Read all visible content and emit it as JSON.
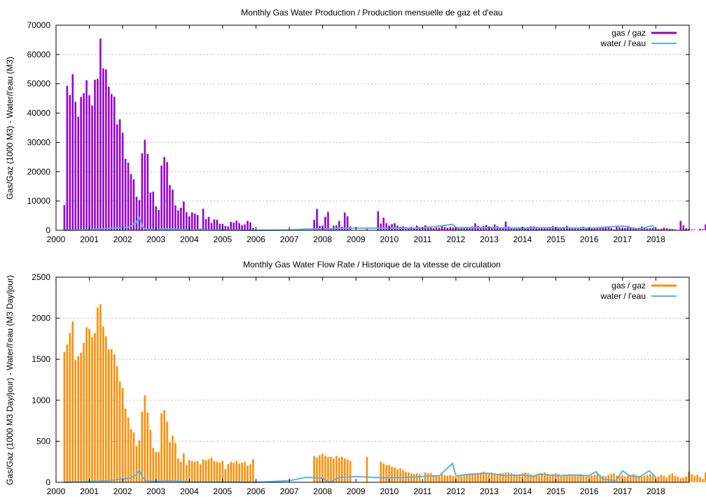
{
  "chart_data": [
    {
      "type": "bar",
      "title": "Monthly Gas  Water Production / Production mensuelle de gaz et d'eau",
      "xlabel": "",
      "ylabel": "Gas/Gaz (1000 M3) - Water/l'eau (M3)",
      "ylim": [
        0,
        70000
      ],
      "xlim": [
        2000,
        2019
      ],
      "legend_position": "top-right",
      "grid": true,
      "x_ticks": [
        "2000",
        "2001",
        "2002",
        "2003",
        "2004",
        "2005",
        "2006",
        "2007",
        "2008",
        "2009",
        "2010",
        "2011",
        "2012",
        "2013",
        "2014",
        "2015",
        "2016",
        "2017",
        "2018"
      ],
      "y_ticks": [
        "0",
        "10000",
        "20000",
        "30000",
        "40000",
        "50000",
        "60000",
        "70000"
      ],
      "colors": {
        "gas": "#9400d3",
        "water": "#56b4e9"
      },
      "series": [
        {
          "name": "gas / gaz",
          "style": "bars",
          "start": 2000.25,
          "step": 0.0833,
          "values": [
            8600,
            49300,
            46200,
            53300,
            43900,
            38800,
            45500,
            46800,
            51200,
            46100,
            42600,
            51400,
            51700,
            65400,
            55300,
            54900,
            49000,
            46500,
            45600,
            36200,
            37900,
            33300,
            24400,
            23100,
            19200,
            17400,
            11500,
            10300,
            26300,
            30900,
            26100,
            12900,
            13200,
            8200,
            7000,
            22100,
            25000,
            23300,
            15400,
            13900,
            8500,
            6800,
            7700,
            9800,
            6200,
            4800,
            6100,
            5700,
            5200,
            600,
            7400,
            3800,
            4600,
            2500,
            3700,
            3600,
            2200,
            2200,
            1500,
            1300,
            2900,
            2600,
            3300,
            2500,
            1700,
            2000,
            3200,
            2700,
            800,
            0,
            0,
            0,
            0,
            0,
            0,
            0,
            0,
            0,
            0,
            0,
            0,
            0,
            0,
            0,
            0,
            0,
            0,
            0,
            0,
            0,
            3600,
            7300,
            1500,
            1600,
            4600,
            6300,
            800,
            1600,
            1700,
            3200,
            1200,
            6100,
            4800,
            1300,
            0,
            0,
            0,
            0,
            0,
            400,
            0,
            0,
            0,
            6500,
            2300,
            4300,
            2400,
            1600,
            2100,
            2400,
            1600,
            1200,
            1300,
            1100,
            1000,
            1200,
            700,
            1600,
            1100,
            700,
            1700,
            1200,
            900,
            700,
            1000,
            900,
            1400,
            1100,
            900,
            1100,
            1000,
            800,
            1000,
            1000,
            900,
            1200,
            1100,
            1300,
            2400,
            1500,
            1100,
            1400,
            1800,
            1300,
            1200,
            2000,
            1400,
            900,
            1100,
            3000,
            1300,
            900,
            800,
            1000,
            1100,
            1200,
            900,
            1100,
            1300,
            1300,
            1200,
            1100,
            1000,
            900,
            900,
            1200,
            1400,
            1000,
            700,
            900,
            1100,
            1500,
            800,
            1000,
            800,
            900,
            1100,
            1200,
            1000,
            900,
            900,
            1000,
            900,
            700,
            1100,
            1200,
            1000,
            800,
            300,
            1500,
            1000,
            600,
            800,
            1500,
            1100,
            1000,
            800,
            900,
            1300,
            1000,
            600,
            700,
            800,
            500,
            400,
            500,
            900,
            700,
            500,
            400,
            300,
            0,
            3200,
            1700,
            700,
            500,
            300,
            200,
            0,
            500,
            400,
            2000,
            2100,
            400
          ]
        },
        {
          "name": "water / l'eau",
          "style": "line",
          "points": [
            [
              2000.25,
              0
            ],
            [
              2001.0,
              300
            ],
            [
              2001.5,
              600
            ],
            [
              2001.8,
              800
            ],
            [
              2002.0,
              900
            ],
            [
              2002.2,
              1200
            ],
            [
              2002.4,
              2500
            ],
            [
              2002.5,
              4400
            ],
            [
              2002.6,
              1200
            ],
            [
              2002.7,
              300
            ],
            [
              2003.0,
              300
            ],
            [
              2003.3,
              500
            ],
            [
              2003.6,
              400
            ],
            [
              2004.0,
              200
            ],
            [
              2005.0,
              100
            ],
            [
              2006.0,
              0
            ],
            [
              2007.0,
              100
            ],
            [
              2007.5,
              400
            ],
            [
              2008.0,
              500
            ],
            [
              2008.5,
              700
            ],
            [
              2009.0,
              800
            ],
            [
              2010.0,
              700
            ],
            [
              2011.0,
              800
            ],
            [
              2011.9,
              2000
            ],
            [
              2012.0,
              900
            ],
            [
              2013.0,
              900
            ],
            [
              2014.0,
              800
            ],
            [
              2015.0,
              900
            ],
            [
              2016.0,
              700
            ],
            [
              2016.4,
              1000
            ],
            [
              2017.0,
              1500
            ],
            [
              2017.5,
              400
            ],
            [
              2017.9,
              1600
            ],
            [
              2018.0,
              200
            ]
          ]
        }
      ]
    },
    {
      "type": "bar",
      "title": "Monthly Gas  Water Flow Rate / Historique de la vitesse de circulation",
      "xlabel": "",
      "ylabel": "Gas/Gaz (1000 M3 Day/jour) - Water/l'eau (M3 Day/jour)",
      "ylim": [
        0,
        2500
      ],
      "xlim": [
        2000,
        2019
      ],
      "legend_position": "top-right",
      "grid": true,
      "x_ticks": [
        "2000",
        "2001",
        "2002",
        "2003",
        "2004",
        "2005",
        "2006",
        "2007",
        "2008",
        "2009",
        "2010",
        "2011",
        "2012",
        "2013",
        "2014",
        "2015",
        "2016",
        "2017",
        "2018"
      ],
      "y_ticks": [
        "0",
        "500",
        "1000",
        "1500",
        "2000",
        "2500"
      ],
      "colors": {
        "gas": "#ff8c00",
        "water": "#56b4e9"
      },
      "series": [
        {
          "name": "gas / gaz",
          "style": "bars",
          "start": 2000.25,
          "step": 0.0833,
          "values": [
            1590,
            1680,
            1820,
            1960,
            1490,
            1540,
            1580,
            1700,
            1890,
            1870,
            1770,
            1820,
            2130,
            2170,
            1900,
            1780,
            1620,
            1620,
            1560,
            1420,
            1230,
            1150,
            900,
            790,
            650,
            610,
            440,
            510,
            860,
            1060,
            850,
            640,
            420,
            370,
            370,
            840,
            880,
            740,
            490,
            570,
            480,
            290,
            250,
            350,
            210,
            270,
            260,
            250,
            260,
            220,
            280,
            270,
            280,
            300,
            260,
            250,
            240,
            260,
            160,
            220,
            250,
            240,
            260,
            230,
            240,
            250,
            200,
            220,
            280,
            0,
            0,
            0,
            0,
            0,
            0,
            0,
            0,
            0,
            0,
            0,
            0,
            0,
            0,
            0,
            0,
            0,
            0,
            0,
            0,
            0,
            320,
            300,
            330,
            350,
            320,
            310,
            310,
            290,
            320,
            300,
            310,
            290,
            280,
            260,
            0,
            0,
            0,
            0,
            0,
            310,
            0,
            0,
            0,
            0,
            250,
            230,
            210,
            210,
            190,
            180,
            160,
            170,
            150,
            130,
            120,
            110,
            100,
            110,
            100,
            0,
            120,
            110,
            110,
            90,
            90,
            80,
            100,
            90,
            80,
            90,
            80,
            70,
            80,
            80,
            90,
            100,
            110,
            110,
            100,
            110,
            120,
            130,
            120,
            110,
            120,
            110,
            100,
            110,
            110,
            120,
            120,
            110,
            100,
            90,
            100,
            110,
            120,
            110,
            100,
            90,
            90,
            100,
            110,
            120,
            100,
            90,
            100,
            110,
            100,
            90,
            80,
            90,
            100,
            90,
            80,
            90,
            100,
            80,
            70,
            90,
            80,
            90,
            100,
            90,
            80,
            70,
            90,
            100,
            110,
            80,
            90,
            90,
            70,
            80,
            90,
            100,
            90,
            80,
            70,
            80,
            90,
            100,
            80,
            70,
            70,
            90,
            80,
            60,
            90,
            110,
            80,
            70,
            50,
            60,
            70,
            130,
            100,
            80,
            90,
            60,
            40,
            120,
            70,
            160,
            130,
            80,
            140,
            70
          ]
        },
        {
          "name": "water / l'eau",
          "style": "line",
          "points": [
            [
              2000.25,
              0
            ],
            [
              2001.0,
              10
            ],
            [
              2001.5,
              20
            ],
            [
              2001.8,
              30
            ],
            [
              2002.0,
              40
            ],
            [
              2002.2,
              50
            ],
            [
              2002.4,
              90
            ],
            [
              2002.5,
              150
            ],
            [
              2002.6,
              60
            ],
            [
              2002.7,
              20
            ],
            [
              2003.0,
              10
            ],
            [
              2003.3,
              20
            ],
            [
              2003.6,
              15
            ],
            [
              2004.0,
              5
            ],
            [
              2005.0,
              3
            ],
            [
              2006.0,
              0
            ],
            [
              2007.0,
              20
            ],
            [
              2007.5,
              60
            ],
            [
              2008.0,
              50
            ],
            [
              2008.2,
              0
            ],
            [
              2008.5,
              60
            ],
            [
              2009.0,
              70
            ],
            [
              2009.5,
              60
            ],
            [
              2010.0,
              55
            ],
            [
              2010.5,
              60
            ],
            [
              2011.0,
              70
            ],
            [
              2011.5,
              80
            ],
            [
              2011.9,
              230
            ],
            [
              2012.0,
              80
            ],
            [
              2012.5,
              100
            ],
            [
              2013.0,
              110
            ],
            [
              2013.5,
              80
            ],
            [
              2014.0,
              90
            ],
            [
              2014.3,
              70
            ],
            [
              2014.5,
              100
            ],
            [
              2015.0,
              80
            ],
            [
              2015.5,
              90
            ],
            [
              2016.0,
              80
            ],
            [
              2016.2,
              130
            ],
            [
              2016.4,
              40
            ],
            [
              2016.8,
              20
            ],
            [
              2017.0,
              140
            ],
            [
              2017.2,
              80
            ],
            [
              2017.5,
              60
            ],
            [
              2017.8,
              140
            ],
            [
              2018.0,
              60
            ]
          ]
        }
      ]
    }
  ]
}
